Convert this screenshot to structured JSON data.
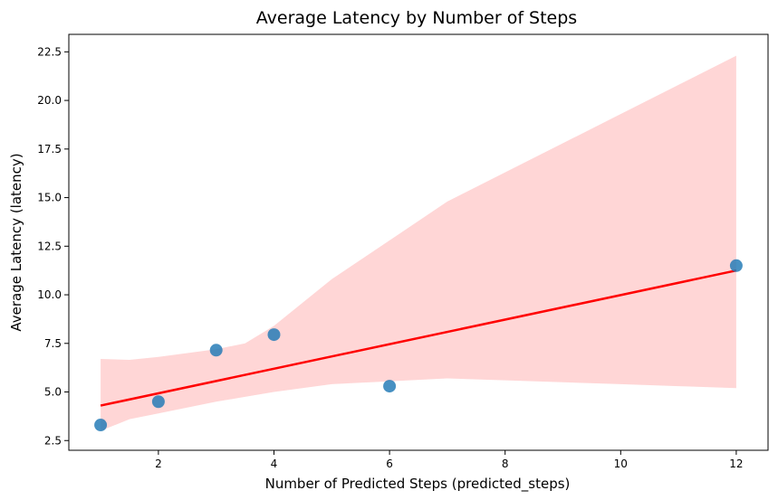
{
  "chart_data": {
    "type": "scatter",
    "title": "Average Latency by Number of Steps",
    "xlabel": "Number of Predicted Steps (predicted_steps)",
    "ylabel": "Average Latency (latency)",
    "xlim": [
      0.45,
      12.55
    ],
    "ylim": [
      2.0,
      23.4
    ],
    "x_ticks": [
      2,
      4,
      6,
      8,
      10,
      12
    ],
    "y_ticks": [
      2.5,
      5.0,
      7.5,
      10.0,
      12.5,
      15.0,
      17.5,
      20.0,
      22.5
    ],
    "x_tick_labels": [
      "2",
      "4",
      "6",
      "8",
      "10",
      "12"
    ],
    "y_tick_labels": [
      "2.5",
      "5.0",
      "7.5",
      "10.0",
      "12.5",
      "15.0",
      "17.5",
      "20.0",
      "22.5"
    ],
    "points": {
      "x": [
        1,
        2,
        3,
        4,
        6,
        12
      ],
      "y": [
        3.3,
        4.5,
        7.15,
        7.95,
        5.3,
        11.5
      ],
      "color": "#1f77b4"
    },
    "regression_line": {
      "x": [
        1,
        12
      ],
      "y": [
        4.3,
        11.25
      ],
      "color": "#ff0000"
    },
    "confidence_band": {
      "color": "#ffd6d6",
      "x": [
        1,
        1.5,
        2,
        2.5,
        3,
        3.5,
        4,
        5,
        6,
        7,
        8,
        9,
        10,
        11,
        12
      ],
      "upper": [
        6.7,
        6.65,
        6.8,
        7.0,
        7.2,
        7.5,
        8.4,
        10.8,
        12.8,
        14.8,
        16.3,
        17.8,
        19.3,
        20.8,
        22.3
      ],
      "lower": [
        3.0,
        3.6,
        3.9,
        4.2,
        4.5,
        4.75,
        5.0,
        5.4,
        5.55,
        5.7,
        5.6,
        5.5,
        5.4,
        5.3,
        5.2
      ]
    },
    "grid": false,
    "legend": "none"
  }
}
